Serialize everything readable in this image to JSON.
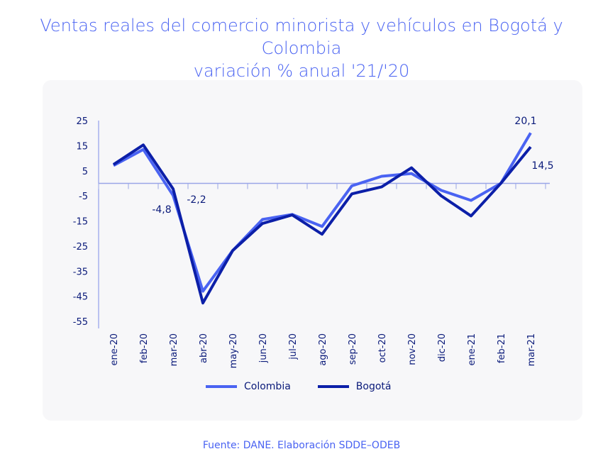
{
  "chart_data": {
    "type": "line",
    "title": "Ventas reales del comercio minorista y vehículos en Bogotá y Colombia",
    "subtitle": "variación % anual '21/'20",
    "categories": [
      "ene-20",
      "feb-20",
      "mar-20",
      "abr-20",
      "may-20",
      "jun-20",
      "jul-20",
      "ago-20",
      "sep-20",
      "oct-20",
      "nov-20",
      "dic-20",
      "ene-21",
      "feb-21",
      "mar-21"
    ],
    "yticks": [
      25,
      15,
      5,
      -5,
      -15,
      -25,
      -35,
      -45,
      -55
    ],
    "ylim": [
      -55,
      25
    ],
    "series": [
      {
        "name": "Colombia",
        "color": "#4a63f2",
        "values": [
          7.1,
          13.5,
          -4.8,
          -43,
          -26.8,
          -14.4,
          -12.4,
          -17.2,
          -1,
          2.8,
          3.9,
          -2.8,
          -6.8,
          0,
          20.1
        ]
      },
      {
        "name": "Bogotá",
        "color": "#0c1fa8",
        "values": [
          7.5,
          15.3,
          -2.2,
          -47.7,
          -26.8,
          -16,
          -12.6,
          -20.3,
          -4.2,
          -1.4,
          6.2,
          -5,
          -13,
          0,
          14.5
        ]
      }
    ],
    "annotations": [
      {
        "text": "-4,8",
        "series": "Colombia",
        "category": "mar-20"
      },
      {
        "text": "-2,2",
        "series": "Bogotá",
        "category": "mar-20"
      },
      {
        "text": "20,1",
        "series": "Colombia",
        "category": "mar-21"
      },
      {
        "text": "14,5",
        "series": "Bogotá",
        "category": "mar-21"
      }
    ],
    "legend_position": "bottom"
  },
  "source": "Fuente: DANE. Elaboración SDDE–ODEB"
}
